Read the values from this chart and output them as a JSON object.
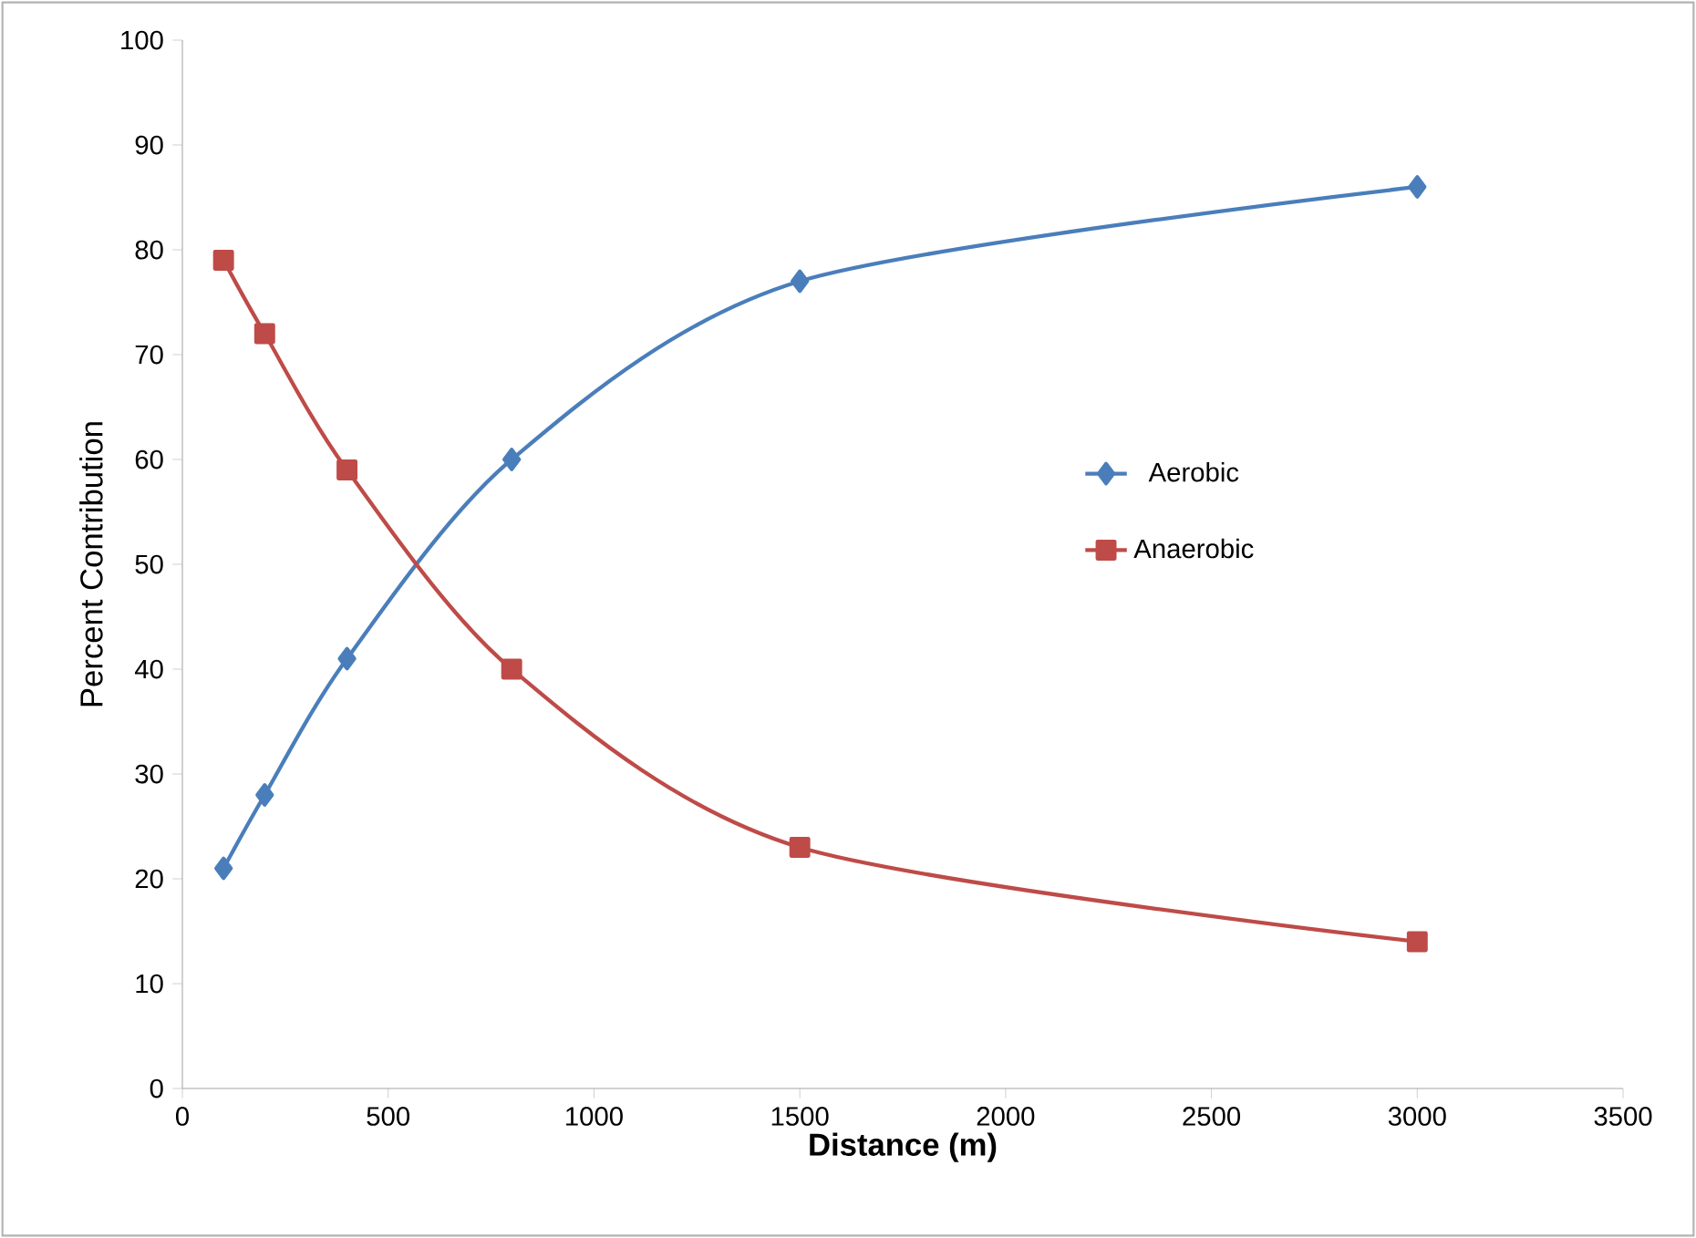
{
  "chart_data": {
    "type": "line",
    "xlabel": "Distance (m)",
    "ylabel": "Percent Contribution",
    "x": [
      100,
      200,
      400,
      800,
      1500,
      3000
    ],
    "series": [
      {
        "name": "Aerobic",
        "color": "#4a7ebb",
        "marker": "diamond",
        "values": [
          21,
          28,
          41,
          60,
          77,
          86
        ]
      },
      {
        "name": "Anaerobic",
        "color": "#be4b48",
        "marker": "square",
        "values": [
          79,
          72,
          59,
          40,
          23,
          14
        ]
      }
    ],
    "xlim": [
      0,
      3500
    ],
    "xticks": [
      0,
      500,
      1000,
      1500,
      2000,
      2500,
      3000,
      3500
    ],
    "ylim": [
      0,
      100
    ],
    "yticks": [
      0,
      10,
      20,
      30,
      40,
      50,
      60,
      70,
      80,
      90,
      100
    ],
    "grid": false,
    "legend": "right",
    "line_style": "solid"
  }
}
